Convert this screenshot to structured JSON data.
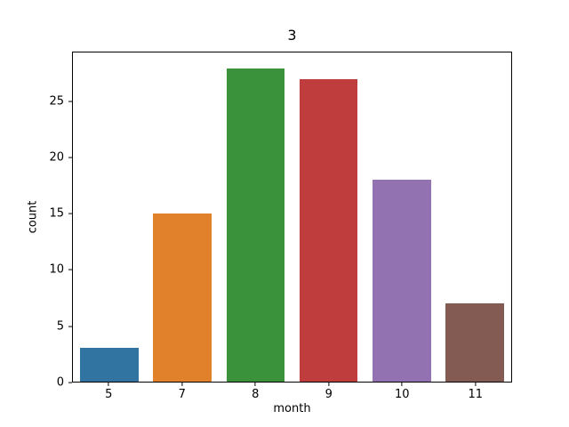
{
  "chart_data": {
    "type": "bar",
    "title": "3",
    "xlabel": "month",
    "ylabel": "count",
    "categories": [
      "5",
      "7",
      "8",
      "9",
      "10",
      "11"
    ],
    "values": [
      3,
      15,
      28,
      27,
      18,
      7
    ],
    "bar_colors": [
      "#3274a1",
      "#e1812c",
      "#3a923a",
      "#c03d3e",
      "#9372b2",
      "#845b53"
    ],
    "yticks": [
      0,
      5,
      10,
      15,
      20,
      25
    ],
    "ylim": [
      0,
      29.4
    ],
    "grid": false,
    "legend": null,
    "spine_color": "#000000",
    "background_color": "#ffffff"
  }
}
